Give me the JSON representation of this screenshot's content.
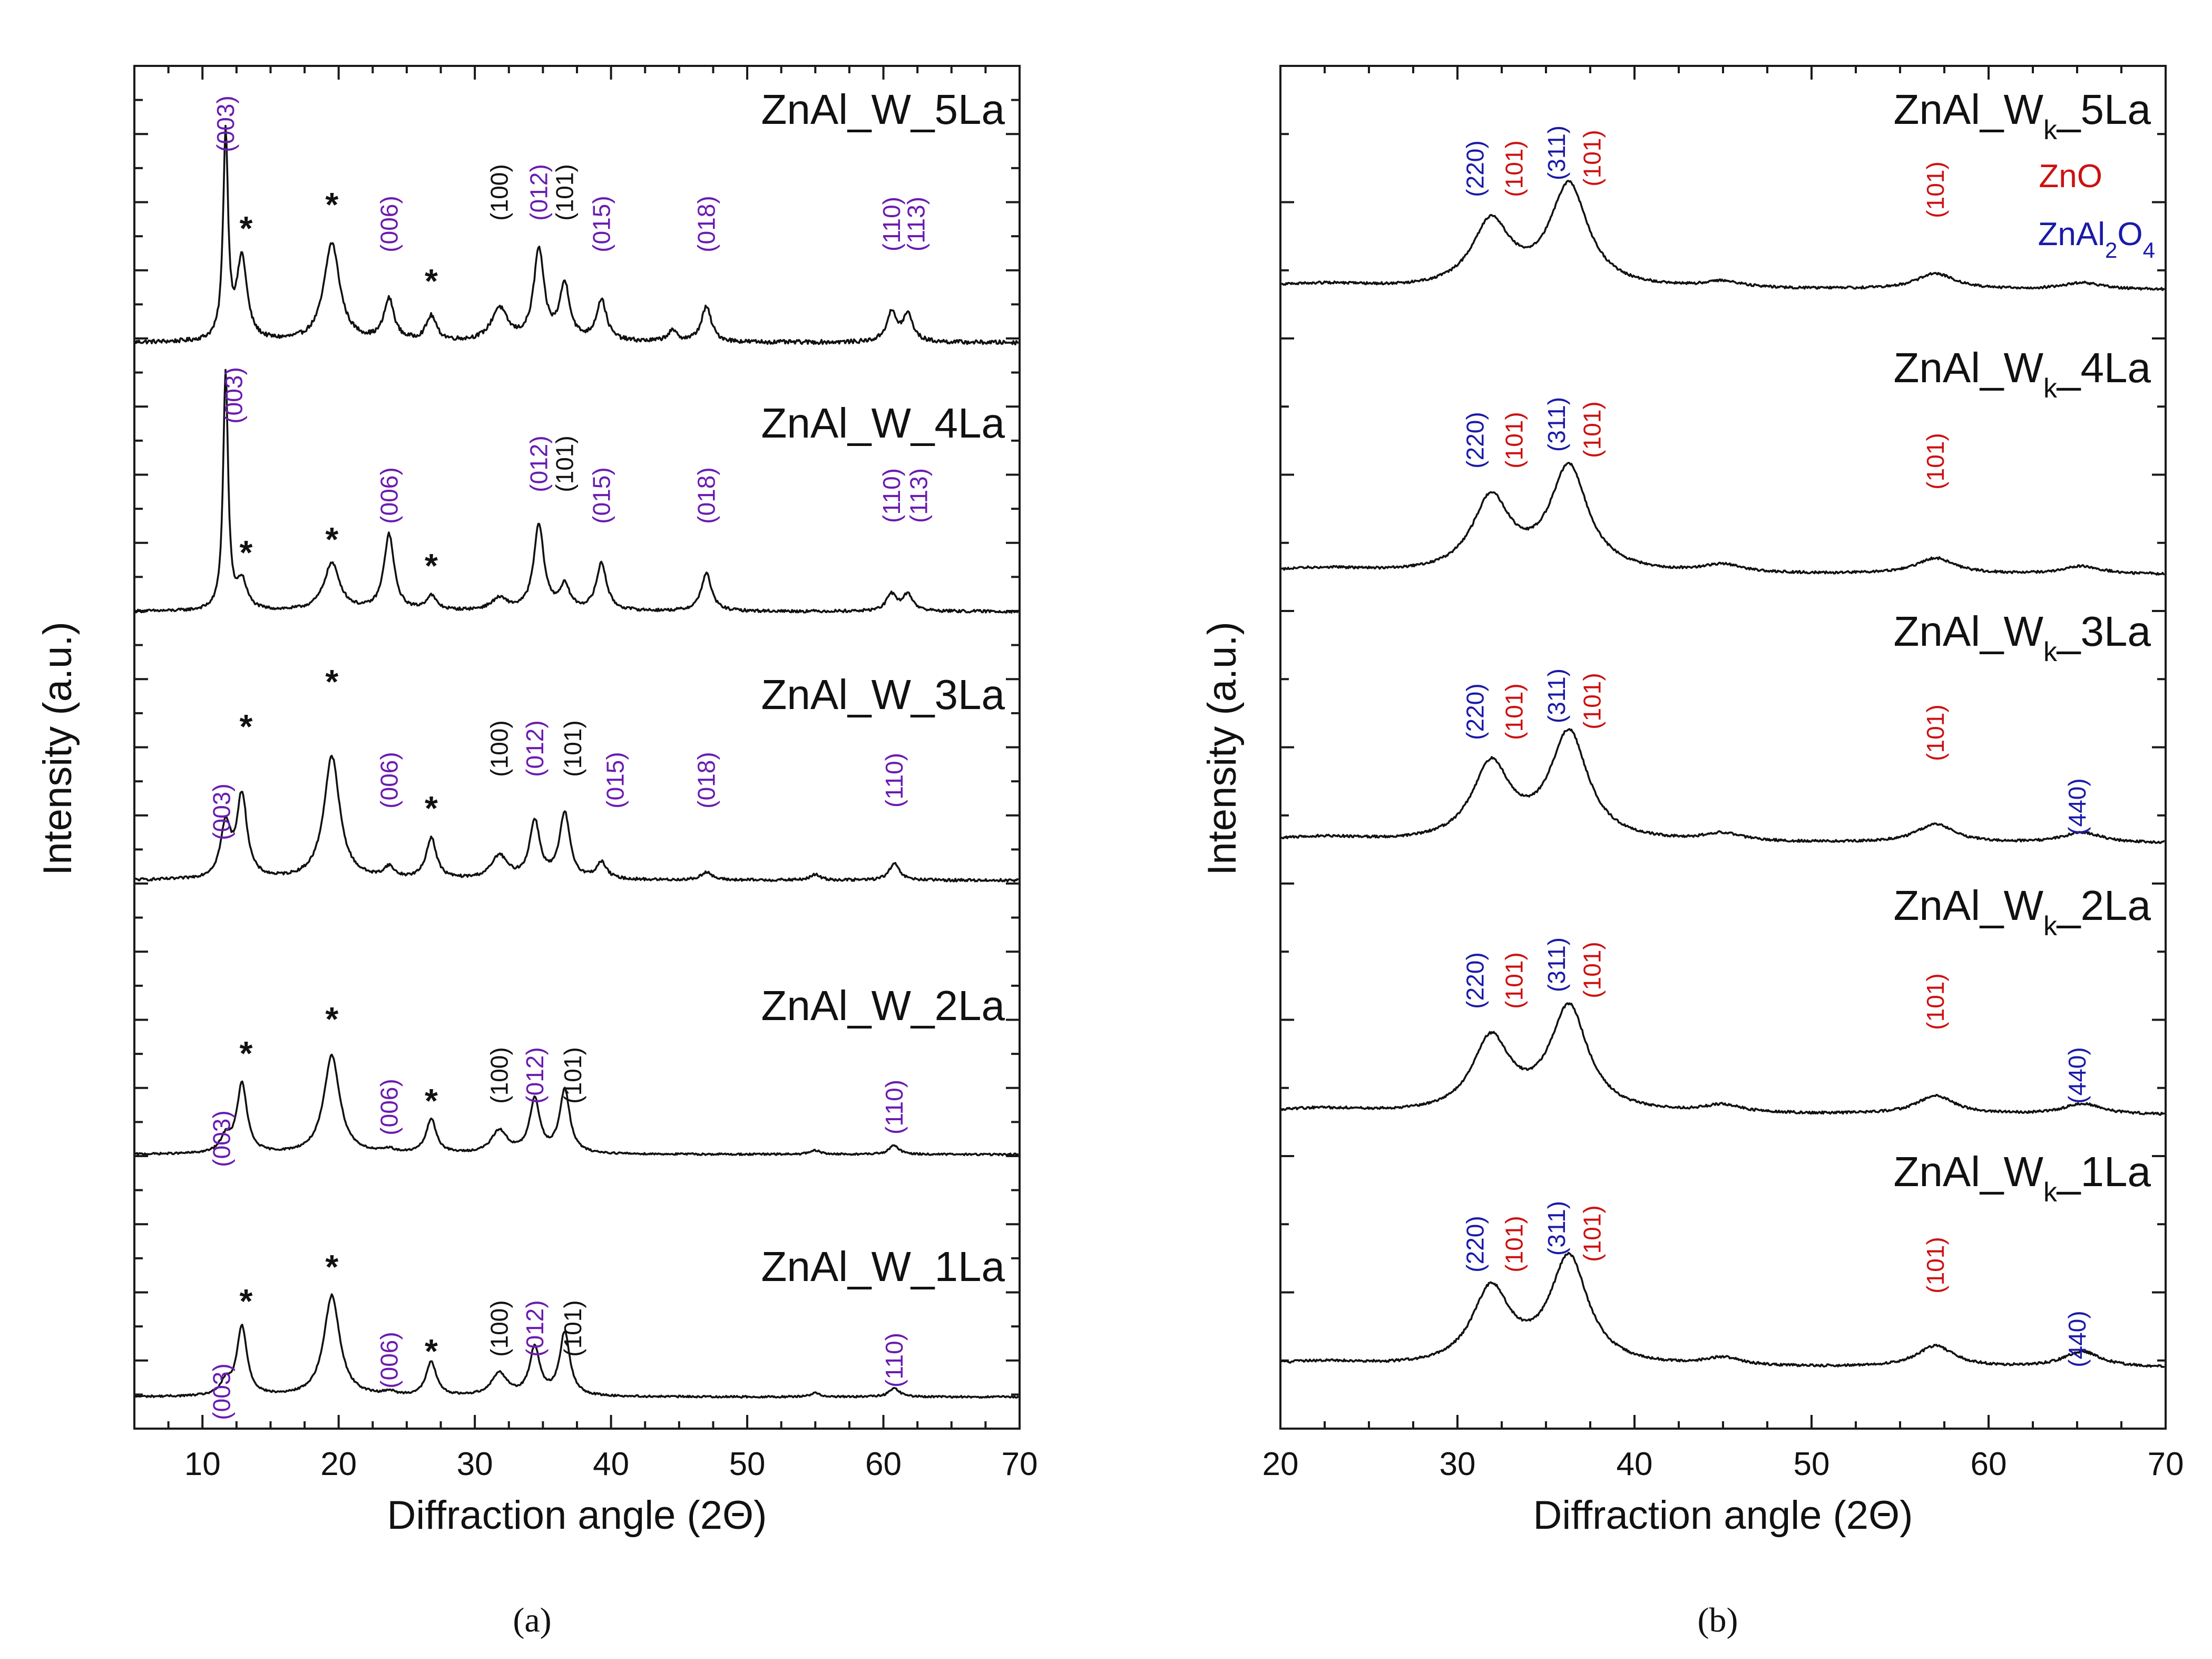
{
  "chart_data": [
    {
      "type": "line",
      "panel": "(a)",
      "xlabel": "Diffraction angle (2Θ)",
      "ylabel": "Intensity (a.u.)",
      "xlim": [
        5,
        70
      ],
      "xticks": [
        10,
        20,
        30,
        40,
        50,
        60,
        70
      ],
      "grid": false,
      "series": [
        {
          "name": "ZnAl_W_5La",
          "peaks": [
            [
              11.7,
              1.0
            ],
            [
              12.9,
              0.4
            ],
            [
              19.5,
              0.48
            ],
            [
              23.7,
              0.2
            ],
            [
              26.8,
              0.12
            ],
            [
              31.8,
              0.16
            ],
            [
              34.7,
              0.44
            ],
            [
              36.6,
              0.27
            ],
            [
              39.3,
              0.2
            ],
            [
              44.5,
              0.05
            ],
            [
              47.0,
              0.17
            ],
            [
              60.6,
              0.14
            ],
            [
              61.8,
              0.13
            ]
          ],
          "baseline_noise": 0.02
        },
        {
          "name": "ZnAl_W_4La",
          "peaks": [
            [
              11.7,
              1.0
            ],
            [
              12.9,
              0.12
            ],
            [
              19.5,
              0.2
            ],
            [
              23.7,
              0.32
            ],
            [
              26.8,
              0.06
            ],
            [
              31.8,
              0.05
            ],
            [
              34.7,
              0.36
            ],
            [
              36.6,
              0.1
            ],
            [
              39.3,
              0.2
            ],
            [
              47.0,
              0.16
            ],
            [
              60.6,
              0.07
            ],
            [
              61.8,
              0.07
            ]
          ],
          "baseline_noise": 0.012
        },
        {
          "name": "ZnAl_W_3La",
          "peaks": [
            [
              11.7,
              0.38
            ],
            [
              12.9,
              0.6
            ],
            [
              19.5,
              0.9
            ],
            [
              23.7,
              0.08
            ],
            [
              26.8,
              0.3
            ],
            [
              31.8,
              0.17
            ],
            [
              34.4,
              0.42
            ],
            [
              36.6,
              0.48
            ],
            [
              39.3,
              0.12
            ],
            [
              47.0,
              0.06
            ],
            [
              55.0,
              0.04
            ],
            [
              60.8,
              0.12
            ]
          ],
          "baseline_noise": 0.02
        },
        {
          "name": "ZnAl_W_2La",
          "peaks": [
            [
              11.7,
              0.12
            ],
            [
              12.9,
              0.55
            ],
            [
              19.5,
              0.78
            ],
            [
              23.7,
              0.03
            ],
            [
              26.8,
              0.27
            ],
            [
              31.8,
              0.18
            ],
            [
              34.4,
              0.42
            ],
            [
              36.6,
              0.5
            ],
            [
              55.0,
              0.03
            ],
            [
              60.8,
              0.07
            ]
          ],
          "baseline_noise": 0.015
        },
        {
          "name": "ZnAl_W_1La",
          "peaks": [
            [
              11.7,
              0.1
            ],
            [
              12.9,
              0.55
            ],
            [
              19.5,
              0.8
            ],
            [
              23.7,
              0.03
            ],
            [
              26.8,
              0.27
            ],
            [
              31.8,
              0.18
            ],
            [
              34.4,
              0.38
            ],
            [
              36.6,
              0.5
            ],
            [
              55.0,
              0.03
            ],
            [
              60.8,
              0.07
            ]
          ],
          "baseline_noise": 0.015
        }
      ],
      "peak_labels": {
        "ZnAl_W_5La": [
          [
            "(003)",
            11.7
          ],
          [
            "(006)",
            23.7
          ],
          [
            "(100)",
            31.8
          ],
          [
            "(012)",
            34.7
          ],
          [
            "(101)",
            36.6
          ],
          [
            "(015)",
            39.3
          ],
          [
            "(018)",
            47.0
          ],
          [
            "(110)",
            60.6
          ],
          [
            "(113)",
            62.4
          ]
        ],
        "ZnAl_W_4La": [
          [
            "(003)",
            12.3
          ],
          [
            "(006)",
            23.7
          ],
          [
            "(012)",
            34.7
          ],
          [
            "(101)",
            36.6
          ],
          [
            "(015)",
            39.3
          ],
          [
            "(018)",
            47.0
          ],
          [
            "(110)",
            60.6
          ],
          [
            "(113)",
            62.6
          ]
        ],
        "ZnAl_W_3La": [
          [
            "(003)",
            11.4
          ],
          [
            "(006)",
            23.7
          ],
          [
            "(100)",
            31.8
          ],
          [
            "(012)",
            34.4
          ],
          [
            "(101)",
            37.2
          ],
          [
            "(015)",
            40.3
          ],
          [
            "(018)",
            47.0
          ],
          [
            "(110)",
            60.8
          ]
        ],
        "ZnAl_W_2La": [
          [
            "(003)",
            11.4
          ],
          [
            "(006)",
            23.7
          ],
          [
            "(100)",
            31.8
          ],
          [
            "(012)",
            34.4
          ],
          [
            "(101)",
            37.2
          ],
          [
            "(110)",
            60.8
          ]
        ],
        "ZnAl_W_1La": [
          [
            "(003)",
            11.4
          ],
          [
            "(006)",
            23.7
          ],
          [
            "(100)",
            31.8
          ],
          [
            "(012)",
            34.4
          ],
          [
            "(101)",
            37.2
          ],
          [
            "(110)",
            60.8
          ]
        ]
      },
      "star_positions": [
        13.2,
        19.5,
        26.8
      ],
      "star_label": "*"
    },
    {
      "type": "line",
      "panel": "(b)",
      "xlabel": "Diffraction angle (2Θ)",
      "ylabel": "Intensity (a.u.)",
      "xlim": [
        20,
        70
      ],
      "xticks": [
        20,
        30,
        40,
        50,
        60,
        70
      ],
      "grid": false,
      "legend": [
        {
          "label": "ZnO",
          "color": "#cc1111"
        },
        {
          "label": "ZnAl",
          "sub": "2",
          "label2": "O",
          "sub2": "4",
          "color": "#1a1aa8"
        }
      ],
      "series": [
        {
          "name": "ZnAl_W",
          "sub": "k",
          "suffix": "_5La",
          "peaks": [
            [
              31.9,
              0.5
            ],
            [
              36.3,
              0.78
            ],
            [
              45.0,
              0.05
            ],
            [
              57.0,
              0.12
            ],
            [
              65.3,
              0.05
            ]
          ]
        },
        {
          "name": "ZnAl_W",
          "sub": "k",
          "suffix": "_4La",
          "peaks": [
            [
              31.9,
              0.56
            ],
            [
              36.3,
              0.8
            ],
            [
              45.0,
              0.06
            ],
            [
              57.0,
              0.12
            ],
            [
              65.3,
              0.06
            ]
          ]
        },
        {
          "name": "ZnAl_W",
          "sub": "k",
          "suffix": "_3La",
          "peaks": [
            [
              31.9,
              0.58
            ],
            [
              36.3,
              0.82
            ],
            [
              45.0,
              0.06
            ],
            [
              57.0,
              0.14
            ],
            [
              65.3,
              0.08
            ]
          ]
        },
        {
          "name": "ZnAl_W",
          "sub": "k",
          "suffix": "_2La",
          "peaks": [
            [
              31.9,
              0.56
            ],
            [
              36.3,
              0.8
            ],
            [
              45.0,
              0.06
            ],
            [
              57.0,
              0.14
            ],
            [
              65.3,
              0.08
            ]
          ]
        },
        {
          "name": "ZnAl_W",
          "sub": "k",
          "suffix": "_1La",
          "peaks": [
            [
              31.9,
              0.58
            ],
            [
              36.3,
              0.82
            ],
            [
              45.0,
              0.06
            ],
            [
              57.0,
              0.16
            ],
            [
              65.3,
              0.12
            ]
          ]
        }
      ],
      "peak_labels": [
        [
          [
            "(220)",
            31.0,
            "blue"
          ],
          [
            "(101)",
            33.2,
            "red"
          ],
          [
            "(311)",
            35.6,
            "blue"
          ],
          [
            "(101)",
            37.6,
            "red"
          ],
          [
            "(101)",
            57.0,
            "red"
          ]
        ],
        [
          [
            "(220)",
            31.0,
            "blue"
          ],
          [
            "(101)",
            33.2,
            "red"
          ],
          [
            "(311)",
            35.6,
            "blue"
          ],
          [
            "(101)",
            37.6,
            "red"
          ],
          [
            "(101)",
            57.0,
            "red"
          ]
        ],
        [
          [
            "(220)",
            31.0,
            "blue"
          ],
          [
            "(101)",
            33.2,
            "red"
          ],
          [
            "(311)",
            35.6,
            "blue"
          ],
          [
            "(101)",
            37.6,
            "red"
          ],
          [
            "(101)",
            57.0,
            "red"
          ],
          [
            "(440)",
            65.0,
            "blue"
          ]
        ],
        [
          [
            "(220)",
            31.0,
            "blue"
          ],
          [
            "(101)",
            33.2,
            "red"
          ],
          [
            "(311)",
            35.6,
            "blue"
          ],
          [
            "(101)",
            37.6,
            "red"
          ],
          [
            "(101)",
            57.0,
            "red"
          ],
          [
            "(440)",
            65.0,
            "blue"
          ]
        ],
        [
          [
            "(220)",
            31.0,
            "blue"
          ],
          [
            "(101)",
            33.2,
            "red"
          ],
          [
            "(311)",
            35.6,
            "blue"
          ],
          [
            "(101)",
            37.6,
            "red"
          ],
          [
            "(101)",
            57.0,
            "red"
          ],
          [
            "(440)",
            65.0,
            "blue"
          ]
        ]
      ]
    }
  ],
  "captions": {
    "a": "(a)",
    "b": "(b)"
  },
  "colors": {
    "purple": "#6a1bb0",
    "red": "#cc1111",
    "blue": "#1a1aa8",
    "black": "#111111"
  }
}
